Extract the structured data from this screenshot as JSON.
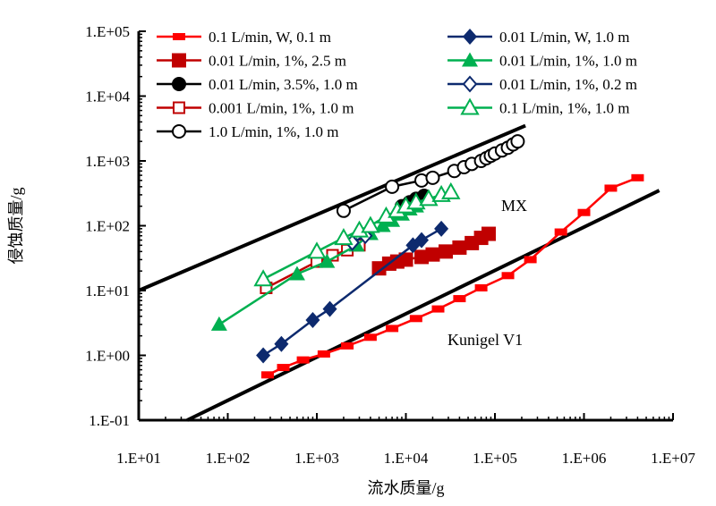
{
  "chart_data": {
    "type": "scatter",
    "xlabel": "流水质量/g",
    "ylabel": "侵蚀质量/g",
    "x_scale": "log",
    "y_scale": "log",
    "xlim": [
      10,
      10000000
    ],
    "ylim": [
      0.1,
      100000
    ],
    "x_ticks": [
      10,
      100,
      1000,
      10000,
      100000,
      1000000,
      10000000
    ],
    "x_tick_labels": [
      "1.E+01",
      "1.E+02",
      "1.E+03",
      "1.E+04",
      "1.E+05",
      "1.E+06",
      "1.E+07"
    ],
    "y_ticks": [
      0.1,
      1,
      10,
      100,
      1000,
      10000,
      100000
    ],
    "y_tick_labels": [
      "1.E-01",
      "1.E+00",
      "1.E+01",
      "1.E+02",
      "1.E+03",
      "1.E+04",
      "1.E+05"
    ],
    "grid": false,
    "legend_placement": "top",
    "series": [
      {
        "name": "0.1 L/min, W, 0.1 m",
        "color": "#ff0000",
        "marker": "square-small",
        "x": [
          280,
          420,
          700,
          1200,
          2200,
          4000,
          7000,
          13000,
          23000,
          40000,
          70000,
          140000,
          250000,
          550000,
          1000000,
          2000000,
          4000000
        ],
        "y": [
          0.5,
          0.65,
          0.85,
          1.05,
          1.4,
          1.9,
          2.6,
          3.7,
          5.2,
          7.5,
          11,
          17,
          30,
          80,
          160,
          380,
          550
        ]
      },
      {
        "name": "0.01 L/min, 1%, 2.5 m",
        "color": "#c00000",
        "marker": "square",
        "x": [
          5000,
          6500,
          8000,
          10000,
          15000,
          20000,
          28000,
          40000,
          55000,
          70000,
          85000
        ],
        "y": [
          22,
          26,
          28,
          30,
          33,
          36,
          40,
          46,
          54,
          65,
          75
        ]
      },
      {
        "name": "0.01 L/min, 3.5%, 1.0 m",
        "color": "#000000",
        "marker": "circle",
        "x": [
          9000,
          11000,
          13000,
          16000
        ],
        "y": [
          200,
          230,
          260,
          290
        ]
      },
      {
        "name": "0.001 L/min, 1%, 1.0 m",
        "color": "#c00000",
        "marker": "square-open",
        "x": [
          270,
          1000,
          1500,
          2200,
          3000
        ],
        "y": [
          11,
          28,
          35,
          42,
          50
        ]
      },
      {
        "name": "1.0 L/min, 1%, 1.0 m",
        "color": "#000000",
        "marker": "circle-open",
        "x": [
          2000,
          7000,
          15000,
          20000,
          35000,
          45000,
          55000,
          70000,
          80000,
          90000,
          100000,
          120000,
          140000,
          160000,
          180000
        ],
        "y": [
          170,
          400,
          500,
          550,
          700,
          800,
          900,
          1000,
          1100,
          1200,
          1300,
          1450,
          1600,
          1800,
          2000
        ]
      },
      {
        "name": "0.01 L/min, W, 1.0 m",
        "color": "#0d2a6e",
        "marker": "diamond",
        "x": [
          250,
          400,
          900,
          1400,
          12000,
          15000,
          25000
        ],
        "y": [
          1.0,
          1.5,
          3.5,
          5.2,
          50,
          60,
          90
        ]
      },
      {
        "name": "0.01 L/min, 1%, 1.0 m",
        "color": "#00b050",
        "marker": "triangle",
        "x": [
          80,
          600,
          1300,
          2800,
          4000,
          5500,
          7000,
          9000,
          11000,
          13000
        ],
        "y": [
          3.0,
          18,
          28,
          50,
          75,
          100,
          120,
          150,
          180,
          200
        ]
      },
      {
        "name": "0.01 L/min, 1%, 0.2 m",
        "color": "#0d2a6e",
        "marker": "diamond-open",
        "x": [
          2500,
          3500
        ],
        "y": [
          55,
          70
        ]
      },
      {
        "name": "0.1 L/min, 1%, 1.0 m",
        "color": "#00b050",
        "marker": "triangle-open",
        "x": [
          250,
          1000,
          2000,
          3000,
          4000,
          6000,
          8000,
          10000,
          13000,
          18000,
          25000,
          32000
        ],
        "y": [
          15,
          40,
          65,
          85,
          100,
          140,
          170,
          200,
          230,
          260,
          300,
          330
        ]
      }
    ],
    "reference_lines": [
      {
        "label": "MX",
        "x": [
          10,
          220000
        ],
        "y": [
          10,
          3500
        ]
      },
      {
        "label": "Kunigel V1",
        "x": [
          35,
          7000000
        ],
        "y": [
          0.1,
          350
        ]
      }
    ]
  }
}
